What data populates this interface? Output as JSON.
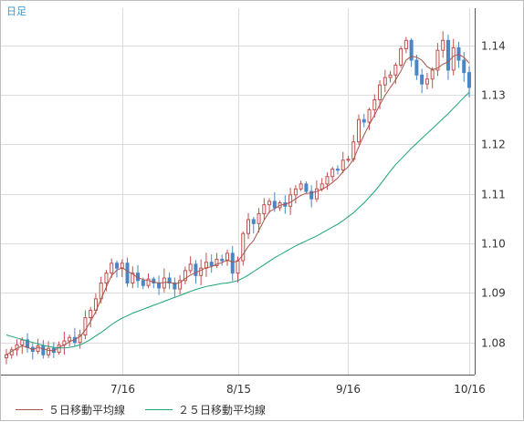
{
  "period_label": "日足",
  "legend": [
    {
      "label": "５日移動平均線",
      "color": "#a8534a"
    },
    {
      "label": "２５日移動平均線",
      "color": "#1aa37a"
    }
  ],
  "colors": {
    "up_candle": "#c0504d",
    "down_candle": "#4a86c5",
    "grid": "#dcdcdc",
    "axis": "#555555"
  },
  "chart_data": {
    "type": "candlestick",
    "title": "",
    "xlabel": "",
    "ylabel": "",
    "ylim": [
      1.0735,
      1.1475
    ],
    "y_ticks": [
      1.08,
      1.09,
      1.1,
      1.11,
      1.12,
      1.13,
      1.14
    ],
    "y_tick_labels": [
      "1.08",
      "1.09",
      "1.10",
      "1.11",
      "1.12",
      "1.13",
      "1.14"
    ],
    "x_tick_labels": [
      {
        "label": "7/16",
        "index": 22
      },
      {
        "label": "8/15",
        "index": 44
      },
      {
        "label": "9/16",
        "index": 65
      },
      {
        "label": "10/16",
        "index": 88
      }
    ],
    "grid": true,
    "series": [
      {
        "name": "candles",
        "close": [
          1.0775,
          1.0785,
          1.0795,
          1.0805,
          1.079,
          1.0782,
          1.0793,
          1.0775,
          1.0788,
          1.078,
          1.0795,
          1.0803,
          1.081,
          1.08,
          1.0815,
          1.085,
          1.0865,
          1.0888,
          1.092,
          1.094,
          1.096,
          1.095,
          1.096,
          1.092,
          1.094,
          1.0925,
          1.0915,
          1.0928,
          1.092,
          1.091,
          1.093,
          1.092,
          1.0908,
          1.0925,
          1.0945,
          1.0958,
          1.0935,
          1.095,
          1.0962,
          1.0955,
          1.0968,
          1.0965,
          1.098,
          1.094,
          1.0965,
          1.102,
          1.1048,
          1.104,
          1.106,
          1.1078,
          1.1085,
          1.1072,
          1.1082,
          1.1075,
          1.1098,
          1.111,
          1.112,
          1.1105,
          1.109,
          1.111,
          1.112,
          1.1135,
          1.115,
          1.1148,
          1.1168,
          1.117,
          1.1205,
          1.125,
          1.1245,
          1.127,
          1.129,
          1.132,
          1.1335,
          1.134,
          1.136,
          1.1393,
          1.141,
          1.137,
          1.134,
          1.1322,
          1.1332,
          1.135,
          1.139,
          1.141,
          1.135,
          1.1395,
          1.137,
          1.1345,
          1.1315
        ]
      },
      {
        "name": "５日移動平均線",
        "values": [
          1.0775,
          1.0782,
          1.0788,
          1.0793,
          1.079,
          1.0785,
          1.079,
          1.0787,
          1.0784,
          1.0783,
          1.079,
          1.0795,
          1.0801,
          1.0806,
          1.0812,
          1.0825,
          1.0842,
          1.0862,
          1.0888,
          1.0912,
          1.0935,
          1.0946,
          1.0951,
          1.0944,
          1.0938,
          1.0931,
          1.0927,
          1.0925,
          1.0922,
          1.092,
          1.0921,
          1.0922,
          1.0918,
          1.0921,
          1.0929,
          1.0936,
          1.0941,
          1.0946,
          1.0951,
          1.0953,
          1.0958,
          1.0961,
          1.0967,
          1.0962,
          1.0964,
          1.0978,
          1.0994,
          1.1006,
          1.1026,
          1.1047,
          1.1064,
          1.107,
          1.1077,
          1.1079,
          1.1083,
          1.109,
          1.1097,
          1.1101,
          1.1102,
          1.1105,
          1.1109,
          1.1115,
          1.1123,
          1.1132,
          1.1145,
          1.1155,
          1.117,
          1.1195,
          1.1219,
          1.124,
          1.1259,
          1.128,
          1.1299,
          1.1315,
          1.133,
          1.1348,
          1.137,
          1.1378,
          1.1376,
          1.137,
          1.1357,
          1.1351,
          1.1354,
          1.1362,
          1.1367,
          1.1378,
          1.1382,
          1.1376,
          1.1364
        ]
      },
      {
        "name": "２５日移動平均線",
        "values": [
          1.0815,
          1.0812,
          1.0809,
          1.0806,
          1.0803,
          1.08,
          1.0797,
          1.0794,
          1.0792,
          1.079,
          1.0789,
          1.0789,
          1.079,
          1.0792,
          1.0795,
          1.08,
          1.0806,
          1.0813,
          1.082,
          1.0828,
          1.0836,
          1.0843,
          1.0849,
          1.0854,
          1.0859,
          1.0863,
          1.0867,
          1.0871,
          1.0875,
          1.0879,
          1.0883,
          1.0887,
          1.0891,
          1.0895,
          1.0899,
          1.0903,
          1.0907,
          1.091,
          1.0913,
          1.0915,
          1.0917,
          1.0919,
          1.092,
          1.0922,
          1.0925,
          1.093,
          1.0936,
          1.0943,
          1.095,
          1.0957,
          1.0964,
          1.0971,
          1.0977,
          1.0983,
          1.0989,
          1.0995,
          1.1,
          1.1005,
          1.101,
          1.1015,
          1.1021,
          1.1027,
          1.1033,
          1.1039,
          1.1046,
          1.1054,
          1.1062,
          1.1072,
          1.1082,
          1.1093,
          1.1105,
          1.1118,
          1.1132,
          1.1146,
          1.1159,
          1.117,
          1.1181,
          1.1192,
          1.1202,
          1.1212,
          1.1222,
          1.1232,
          1.1242,
          1.1252,
          1.1262,
          1.1273,
          1.1284,
          1.1295,
          1.1305
        ]
      }
    ]
  }
}
